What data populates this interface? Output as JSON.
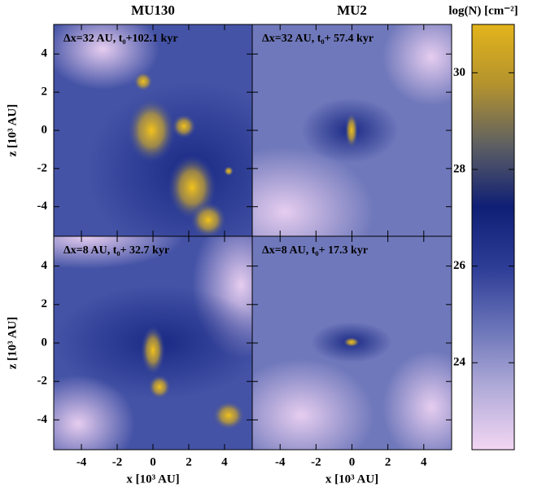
{
  "chart_data": {
    "type": "image-grid",
    "panels": [
      {
        "type": "image",
        "title": "MU130",
        "annotation": "Δx=32 AU, t₀+102.1 kyr",
        "ylabel": "z [10³ AU]",
        "xlim": [
          -5.55,
          5.55
        ],
        "ylim": [
          -5.55,
          5.55
        ],
        "xticks": [
          -4,
          -2,
          0,
          2,
          4
        ],
        "yticks": [
          -4,
          -2,
          0,
          2,
          4
        ]
      },
      {
        "type": "image",
        "title": "MU2",
        "annotation": "Δx=32 AU, t₀+ 57.4 kyr",
        "xlim": [
          -5.55,
          5.55
        ],
        "ylim": [
          -5.55,
          5.55
        ],
        "xticks": [
          -4,
          -2,
          0,
          2,
          4
        ],
        "yticks": [
          -4,
          -2,
          0,
          2,
          4
        ]
      },
      {
        "type": "image",
        "annotation": "Δx=8 AU, t₀+ 32.7 kyr",
        "xlabel": "x [10³ AU]",
        "ylabel": "z [10³ AU]",
        "xlim": [
          -5.55,
          5.55
        ],
        "ylim": [
          -5.55,
          5.55
        ],
        "xticks": [
          -4,
          -2,
          0,
          2,
          4
        ],
        "yticks": [
          -4,
          -2,
          0,
          2,
          4
        ]
      },
      {
        "type": "image",
        "annotation": "Δx=8 AU, t₀+ 17.3 kyr",
        "xlabel": "x [10³ AU]",
        "xlim": [
          -5.55,
          5.55
        ],
        "ylim": [
          -5.55,
          5.55
        ],
        "xticks": [
          -4,
          -2,
          0,
          2,
          4
        ],
        "yticks": [
          -4,
          -2,
          0,
          2,
          4
        ]
      }
    ],
    "colorbar": {
      "label": "log(N) [cm⁻²]",
      "lim": [
        22.2,
        31
      ],
      "ticks": [
        24,
        26,
        28,
        30
      ],
      "colormap": [
        "#f3d6f3",
        "#b2acd9",
        "#6a74b8",
        "#2d3c96",
        "#0f1f75",
        "#5d5f63",
        "#b3922e",
        "#e3b41c"
      ]
    }
  }
}
